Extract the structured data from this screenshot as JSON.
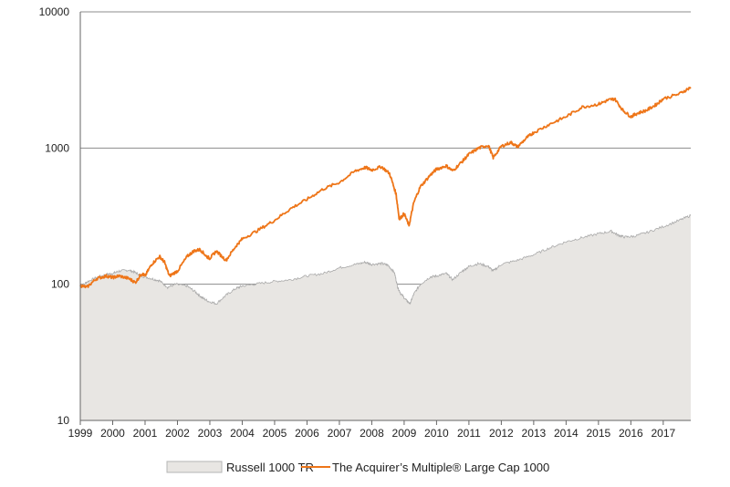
{
  "chart_data": {
    "type": "area",
    "y_scale": "log",
    "ylim": [
      10,
      10000
    ],
    "xlim": [
      1999.0,
      2017.85
    ],
    "grid": "horizontal",
    "legend_placement": "bottom",
    "y_ticks": [
      "10",
      "100",
      "1000",
      "10000"
    ],
    "x_ticks": [
      "1999",
      "2000",
      "2001",
      "2002",
      "2003",
      "2004",
      "2005",
      "2006",
      "2007",
      "2008",
      "2009",
      "2010",
      "2011",
      "2012",
      "2013",
      "2014",
      "2015",
      "2016",
      "2017"
    ],
    "series": [
      {
        "name": "Russell 1000 TR",
        "style": "area",
        "color": "#e8e6e3",
        "line_color": "#a9a9a9",
        "x": [
          1999.0,
          1999.2,
          1999.5,
          1999.8,
          2000.0,
          2000.2,
          2000.5,
          2000.7,
          2000.9,
          2001.2,
          2001.45,
          2001.7,
          2001.95,
          2002.3,
          2002.55,
          2002.75,
          2002.95,
          2003.2,
          2003.5,
          2003.8,
          2004.0,
          2004.5,
          2005.0,
          2005.5,
          2006.0,
          2006.5,
          2007.0,
          2007.5,
          2007.8,
          2008.0,
          2008.3,
          2008.5,
          2008.7,
          2008.8,
          2008.9,
          2009.05,
          2009.18,
          2009.3,
          2009.5,
          2009.8,
          2010.0,
          2010.3,
          2010.5,
          2010.8,
          2011.0,
          2011.3,
          2011.6,
          2011.75,
          2012.0,
          2012.5,
          2013.0,
          2013.5,
          2014.0,
          2014.5,
          2015.0,
          2015.4,
          2015.6,
          2015.8,
          2016.1,
          2016.5,
          2017.0,
          2017.5,
          2017.85
        ],
        "values": [
          95,
          104,
          112,
          118,
          120,
          125,
          127,
          122,
          115,
          110,
          106,
          95,
          100,
          97,
          88,
          80,
          75,
          72,
          83,
          93,
          97,
          101,
          105,
          108,
          115,
          120,
          132,
          140,
          145,
          140,
          142,
          138,
          122,
          95,
          85,
          77,
          72,
          85,
          100,
          113,
          115,
          120,
          108,
          125,
          135,
          142,
          135,
          125,
          140,
          150,
          165,
          185,
          205,
          220,
          235,
          245,
          230,
          222,
          225,
          240,
          265,
          295,
          320
        ]
      },
      {
        "name": "The Acquirer’s Multiple® Large Cap 1000",
        "style": "line",
        "color": "#ee7518",
        "x": [
          1999.0,
          1999.2,
          1999.5,
          1999.8,
          2000.0,
          2000.2,
          2000.5,
          2000.7,
          2000.9,
          2001.0,
          2001.2,
          2001.45,
          2001.6,
          2001.75,
          2002.0,
          2002.3,
          2002.5,
          2002.7,
          2002.9,
          2003.0,
          2003.2,
          2003.5,
          2003.8,
          2004.0,
          2004.5,
          2005.0,
          2005.5,
          2006.0,
          2006.5,
          2007.0,
          2007.5,
          2007.8,
          2008.0,
          2008.3,
          2008.55,
          2008.75,
          2008.85,
          2009.0,
          2009.15,
          2009.3,
          2009.5,
          2009.8,
          2010.0,
          2010.3,
          2010.5,
          2010.8,
          2011.0,
          2011.3,
          2011.6,
          2011.75,
          2012.0,
          2012.3,
          2012.5,
          2012.8,
          2013.0,
          2013.5,
          2014.0,
          2014.5,
          2015.0,
          2015.3,
          2015.5,
          2015.75,
          2016.0,
          2016.2,
          2016.5,
          2016.8,
          2017.0,
          2017.5,
          2017.85
        ],
        "values": [
          98,
          95,
          110,
          115,
          112,
          115,
          110,
          103,
          120,
          115,
          140,
          160,
          145,
          115,
          125,
          160,
          175,
          180,
          160,
          155,
          175,
          150,
          190,
          215,
          250,
          295,
          360,
          420,
          500,
          560,
          680,
          720,
          690,
          730,
          650,
          460,
          300,
          330,
          270,
          400,
          520,
          630,
          700,
          740,
          680,
          800,
          900,
          1000,
          1050,
          850,
          1030,
          1100,
          1020,
          1200,
          1300,
          1500,
          1700,
          2000,
          2100,
          2250,
          2300,
          1900,
          1700,
          1800,
          1900,
          2100,
          2300,
          2500,
          2800
        ]
      }
    ]
  }
}
